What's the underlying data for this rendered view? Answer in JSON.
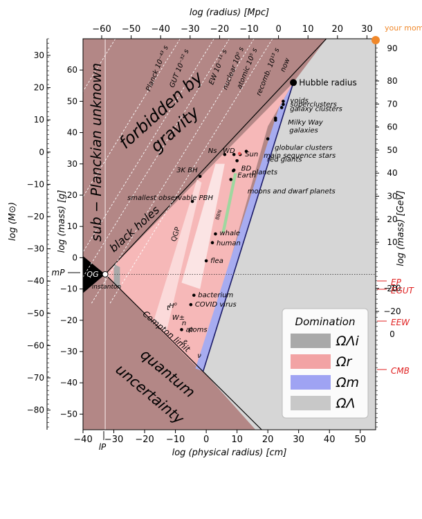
{
  "chart_data": {
    "type": "scatter",
    "title": "",
    "bottom_axis": {
      "label": "log (physical radius) [cm]",
      "range": [
        -40,
        55
      ],
      "ticks": [
        "−40",
        "−30",
        "−20",
        "−10",
        "0",
        "10",
        "20",
        "30",
        "40",
        "50"
      ]
    },
    "top_axis": {
      "label": "log (radius) [Mpc]",
      "ticks": [
        "−60",
        "−50",
        "−40",
        "−30",
        "−20",
        "−10",
        "0",
        "10",
        "20",
        "30"
      ]
    },
    "left_axis_inner": {
      "label": "log (mass) [g]",
      "range": [
        -55,
        70
      ],
      "ticks": [
        "60",
        "50",
        "40",
        "30",
        "20",
        "10",
        "0",
        "−10",
        "−20",
        "−30",
        "−40",
        "−50"
      ]
    },
    "left_axis_outer": {
      "label": "log (M⊙)",
      "ticks": [
        "30",
        "20",
        "10",
        "0",
        "−10",
        "−20",
        "−30",
        "−40",
        "−50",
        "−60",
        "−70",
        "−80"
      ]
    },
    "right_axis_inner": {
      "label": "log (mass) [GeV]",
      "ticks": [
        "80",
        "70",
        "60",
        "50",
        "40",
        "30",
        "20",
        "10",
        "−10",
        "−20"
      ]
    },
    "right_axis_outer": {
      "ticks": [
        "90"
      ]
    },
    "regions": {
      "sub_planckian": "sub − Planckian unknown",
      "forbidden": "forbidden by gravity",
      "black_holes": "black holes",
      "quantum": "quantum uncertainty",
      "qg": "QG",
      "instanton": "instanton"
    },
    "epochs": [
      {
        "label": "Planck 10⁻⁴³ s",
        "x": -40.5
      },
      {
        "label": "GUT 10⁻³² s",
        "x": -29.5
      },
      {
        "label": "EW 10⁻¹¹ s",
        "x": -8.5
      },
      {
        "label": "nuclear 10⁰ s",
        "x": 2.5
      },
      {
        "label": "atomic 10⁵ s",
        "x": 7.5
      },
      {
        "label": "recomb. 10¹³ s",
        "x": 15.5
      },
      {
        "label": "now",
        "x": 21.5
      }
    ],
    "objects": [
      {
        "name": "Hubble radius",
        "x": 28.1,
        "y": 55.9
      },
      {
        "name": "voids",
        "x": 25,
        "y": 50
      },
      {
        "name": "superclusters",
        "x": 25,
        "y": 49
      },
      {
        "name": "galaxy clusters",
        "x": 24.5,
        "y": 48
      },
      {
        "name": "Milky Way",
        "x": 22.5,
        "y": 44.6
      },
      {
        "name": "galaxies",
        "x": 22.5,
        "y": 44
      },
      {
        "name": "globular clusters",
        "x": 20,
        "y": 38
      },
      {
        "name": "main sequence stars",
        "x": 11,
        "y": 33
      },
      {
        "name": "Sun",
        "x": 10.8,
        "y": 33.3
      },
      {
        "name": "red giants",
        "x": 13,
        "y": 34
      },
      {
        "name": "BD",
        "x": 10,
        "y": 31
      },
      {
        "name": "WD",
        "x": 9,
        "y": 33
      },
      {
        "name": "Ns",
        "x": 6,
        "y": 33
      },
      {
        "name": "planets",
        "x": 9,
        "y": 28
      },
      {
        "name": "Earth",
        "x": 8.8,
        "y": 27.8
      },
      {
        "name": "moons and dwarf planets",
        "x": 8,
        "y": 25
      },
      {
        "name": "3K BH",
        "x": -2,
        "y": 26
      },
      {
        "name": "smallest observable PBH",
        "x": -4.5,
        "y": 18
      },
      {
        "name": "whale",
        "x": 3,
        "y": 7.6
      },
      {
        "name": "human",
        "x": 2,
        "y": 4.8
      },
      {
        "name": "flea",
        "x": 0,
        "y": -1
      },
      {
        "name": "bacterium",
        "x": -4,
        "y": -12
      },
      {
        "name": "COVID virus",
        "x": -5,
        "y": -15
      },
      {
        "name": "atoms",
        "x": -8,
        "y": -23
      },
      {
        "name": "QGP",
        "x": -10,
        "y": 5
      },
      {
        "name": "BBN",
        "x": 4,
        "y": 12
      }
    ],
    "particles": [
      "t",
      "H⁰",
      "W±",
      "n",
      "p",
      "e",
      "ν"
    ],
    "lines": [
      {
        "label": "Compton limit"
      }
    ],
    "markers_left": [
      {
        "label": "mP",
        "y_gsl": -5.3
      },
      {
        "label": "lP"
      }
    ],
    "markers_right": [
      {
        "label": "EP",
        "y": 19
      },
      {
        "label": "EGUT",
        "y": 16
      },
      {
        "label": "EEW",
        "y": 2
      },
      {
        "label": "CMB",
        "y": -13
      }
    ],
    "legend": {
      "title": "Domination",
      "placement": "bottom-right",
      "entries": [
        {
          "name": "ΩΛi",
          "color": "#a9a9a9"
        },
        {
          "name": "Ωr",
          "color": "#f2a3a4"
        },
        {
          "name": "Ωm",
          "color": "#9fa3f3"
        },
        {
          "name": "ΩΛ",
          "color": "#c8c8c8"
        }
      ]
    },
    "colors": {
      "forbidden": "#b38786",
      "radiation": "#f6b8b8",
      "matter": "#a7acf0",
      "lambda": "#d6d6d6",
      "qg": "#000000",
      "marker": "#e02020",
      "watermark": "#f0882a"
    },
    "watermark": "your mom"
  }
}
